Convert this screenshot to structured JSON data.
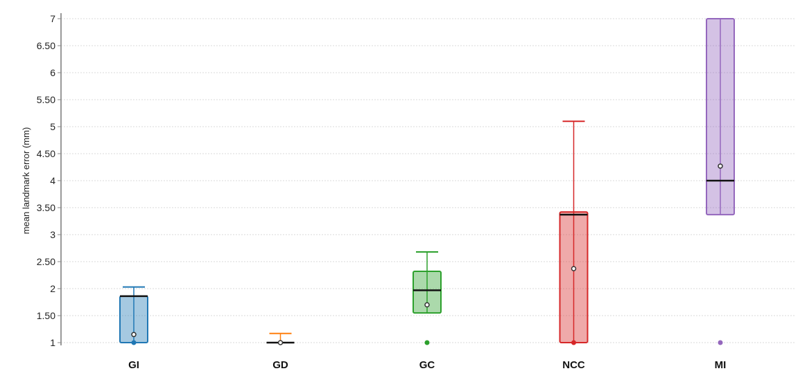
{
  "chart_data": {
    "type": "box",
    "title": "",
    "xlabel": "",
    "ylabel": "mean landmark error (mm)",
    "ylim": [
      1,
      7
    ],
    "yticks": [
      1,
      1.5,
      2,
      2.5,
      3,
      3.5,
      4,
      4.5,
      5,
      5.5,
      6,
      6.5,
      7
    ],
    "ytick_labels": [
      "1",
      "1.50",
      "2",
      "2.50",
      "3",
      "3.50",
      "4",
      "4.50",
      "5",
      "5.50",
      "6",
      "6.50",
      "7"
    ],
    "grid": true,
    "categories": [
      "GI",
      "GD",
      "GC",
      "NCC",
      "MI"
    ],
    "series": [
      {
        "category": "GI",
        "color": "#1f77b4",
        "whisker_low": 1.0,
        "q1": 1.0,
        "median": 1.86,
        "q3": 1.86,
        "whisker_high": 2.03,
        "mean": 1.15,
        "outliers": [
          1.0
        ]
      },
      {
        "category": "GD",
        "color": "#ff7f0e",
        "whisker_low": 1.0,
        "q1": 1.0,
        "median": 1.0,
        "q3": 1.0,
        "whisker_high": 1.17,
        "mean": 1.0,
        "outliers": [
          1.0
        ]
      },
      {
        "category": "GC",
        "color": "#2ca02c",
        "whisker_low": 1.55,
        "q1": 1.55,
        "median": 1.97,
        "q3": 2.32,
        "whisker_high": 2.68,
        "mean": 1.7,
        "outliers": [
          1.0
        ]
      },
      {
        "category": "NCC",
        "color": "#d62728",
        "whisker_low": 1.0,
        "q1": 1.0,
        "median": 3.37,
        "q3": 3.42,
        "whisker_high": 5.1,
        "mean": 2.37,
        "outliers": [
          1.0
        ]
      },
      {
        "category": "MI",
        "color": "#9467bd",
        "whisker_low": 3.37,
        "q1": 3.37,
        "median": 4.0,
        "q3": 7.0,
        "whisker_high": 7.0,
        "mean": 4.27,
        "outliers": [
          1.0
        ]
      }
    ]
  }
}
